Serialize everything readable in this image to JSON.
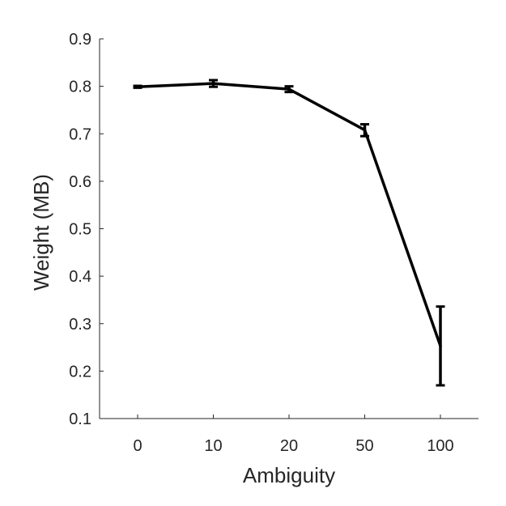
{
  "chart_data": {
    "type": "line",
    "title": "",
    "xlabel": "Ambiguity",
    "ylabel": "Weight (MB)",
    "categories": [
      "0",
      "10",
      "20",
      "50",
      "100"
    ],
    "ylim": [
      0.1,
      0.9
    ],
    "yticks": [
      "0.1",
      "0.2",
      "0.3",
      "0.4",
      "0.5",
      "0.6",
      "0.7",
      "0.8",
      "0.9"
    ],
    "grid": false,
    "legend": "none",
    "series": [
      {
        "values": [
          0.799,
          0.806,
          0.794,
          0.708,
          0.253
        ],
        "err_low": [
          0.797,
          0.799,
          0.788,
          0.695,
          0.17
        ],
        "err_high": [
          0.801,
          0.813,
          0.8,
          0.72,
          0.336
        ],
        "color": "#000000"
      }
    ],
    "axis_color": "#262626"
  }
}
